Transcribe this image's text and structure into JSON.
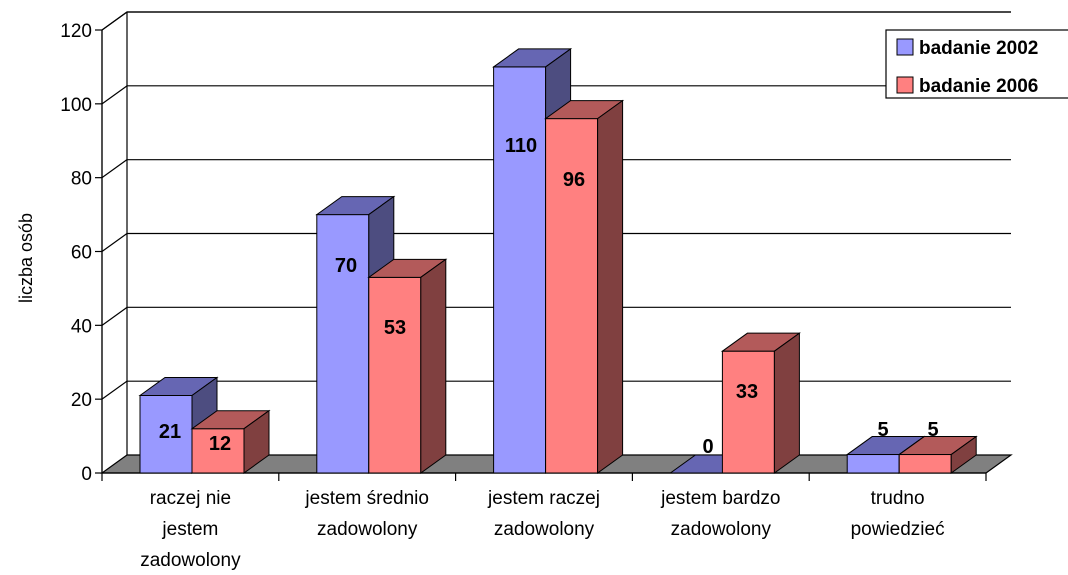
{
  "chart_data": {
    "type": "bar",
    "title": "",
    "xlabel": "",
    "ylabel": "liczba osób",
    "ylim": [
      0,
      120
    ],
    "yticks": [
      0,
      20,
      40,
      60,
      80,
      100,
      120
    ],
    "grid": true,
    "legend_position": "top-right",
    "categories": [
      [
        "raczej nie",
        "jestem",
        "zadowolony"
      ],
      [
        "jestem średnio",
        "zadowolony"
      ],
      [
        "jestem raczej",
        "zadowolony"
      ],
      [
        "jestem bardzo",
        "zadowolony"
      ],
      [
        "trudno",
        "powiedzieć"
      ]
    ],
    "series": [
      {
        "name": "badanie 2002",
        "values": [
          21,
          70,
          110,
          0,
          5
        ],
        "color": "#9999ff",
        "top_color": "#6666b3",
        "side_color": "#4d4d80"
      },
      {
        "name": "badanie 2006",
        "values": [
          12,
          53,
          96,
          33,
          5
        ],
        "color": "#ff8080",
        "top_color": "#b35a5a",
        "side_color": "#804040"
      }
    ],
    "data_labels": [
      [
        "21",
        "70",
        "110",
        "0",
        "5"
      ],
      [
        "12",
        "53",
        "96",
        "33",
        "5"
      ]
    ]
  }
}
